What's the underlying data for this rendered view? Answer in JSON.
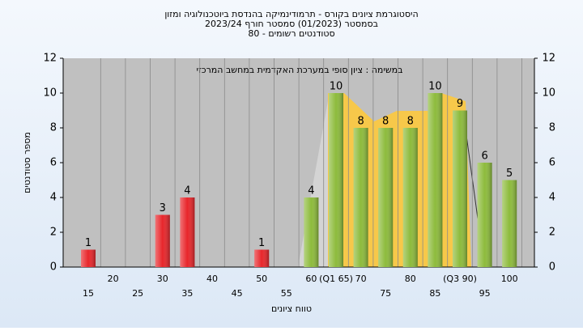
{
  "chart_data": {
    "type": "bar",
    "title": "היסטוגרמת ציונים בקורס - תרמודינמיקה בהנדסת ביוטכנולוגיה ומזון",
    "subtitle": "בסמסטר (01/2023) סמסטר חורף 2023/24",
    "subtitle2": "סטודנטים רשומים - 80",
    "annotation": "במשימה : ציון סופי במערכת האקדמית במחשב המרכזי",
    "x_label": "טווח ציונים",
    "y_label": "מספר סטודנטים",
    "categories": [
      "15",
      "20",
      "25",
      "30",
      "35",
      "40",
      "45",
      "50",
      "55",
      "60",
      "(Q1 65)",
      "70",
      "75",
      "80",
      "85",
      "(Q3 90)",
      "95",
      "100"
    ],
    "values": [
      1,
      0,
      0,
      3,
      4,
      0,
      0,
      1,
      0,
      4,
      10,
      8,
      8,
      8,
      10,
      9,
      6,
      5
    ],
    "colors": [
      "#e8262b",
      "#e8262b",
      "#e8262b",
      "#e8262b",
      "#e8262b",
      "#e8262b",
      "#e8262b",
      "#e8262b",
      "#e8262b",
      "#8dbb3c",
      "#8dbb3c",
      "#8dbb3c",
      "#8dbb3c",
      "#8dbb3c",
      "#8dbb3c",
      "#8dbb3c",
      "#8dbb3c",
      "#8dbb3c"
    ],
    "ylim": [
      0,
      12
    ],
    "yticks": [
      0,
      2,
      4,
      6,
      8,
      10,
      12
    ],
    "y2lim": [
      0,
      12
    ],
    "y2ticks": [
      0,
      2,
      4,
      6,
      8,
      10,
      12
    ],
    "grid": true
  }
}
